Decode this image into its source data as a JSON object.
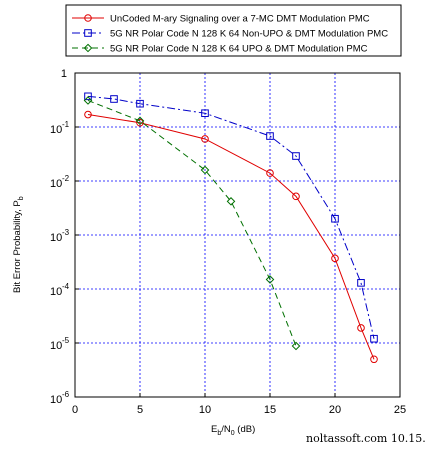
{
  "chart_data": {
    "type": "line",
    "xlabel": {
      "main": "E",
      "sub1": "b",
      "mid": "/N",
      "sub2": "0",
      "tail": " (dB)"
    },
    "ylabel": {
      "main": "Bit Error Probability, P",
      "sub": "b"
    },
    "xlim": [
      0,
      25
    ],
    "ylim": [
      1e-06,
      1
    ],
    "y_scale": "log",
    "x_ticks": [
      "0",
      "5",
      "10",
      "15",
      "20",
      "25"
    ],
    "y_ticks": [
      {
        "base": "1",
        "exp": ""
      },
      {
        "base": "10",
        "exp": "-1"
      },
      {
        "base": "10",
        "exp": "-2"
      },
      {
        "base": "10",
        "exp": "-3"
      },
      {
        "base": "10",
        "exp": "-4"
      },
      {
        "base": "10",
        "exp": "-5"
      },
      {
        "base": "10",
        "exp": "-6"
      }
    ],
    "grid": true,
    "legend_position": "top",
    "series": [
      {
        "name": "UnCoded M-ary Signaling over a 7-MC DMT Modulation PMC",
        "color": "#e00000",
        "marker": "circle",
        "dash": "solid",
        "x": [
          1,
          5,
          10,
          15,
          17,
          20,
          22,
          23
        ],
        "y": [
          0.17,
          0.12,
          0.06,
          0.014,
          0.0052,
          0.00037,
          1.9e-05,
          5e-06
        ]
      },
      {
        "name": "5G NR Polar Code N 128 K 64 Non-UPO & DMT Modulation PMC",
        "color": "#0000c8",
        "marker": "square",
        "dash": "dashdot",
        "x": [
          1,
          3,
          5,
          10,
          15,
          17,
          20,
          22,
          23
        ],
        "y": [
          0.37,
          0.33,
          0.27,
          0.18,
          0.068,
          0.029,
          0.002,
          0.00013,
          1.2e-05
        ]
      },
      {
        "name": "5G NR Polar Code N 128 K 64 UPO & DMT Modulation PMC",
        "color": "#007000",
        "marker": "diamond",
        "dash": "dashed",
        "x": [
          1,
          5,
          10,
          12,
          15,
          17
        ],
        "y": [
          0.31,
          0.13,
          0.016,
          0.0042,
          0.00015,
          8.8e-06
        ]
      }
    ]
  },
  "credit": "noltassoft.com 10.15.25"
}
